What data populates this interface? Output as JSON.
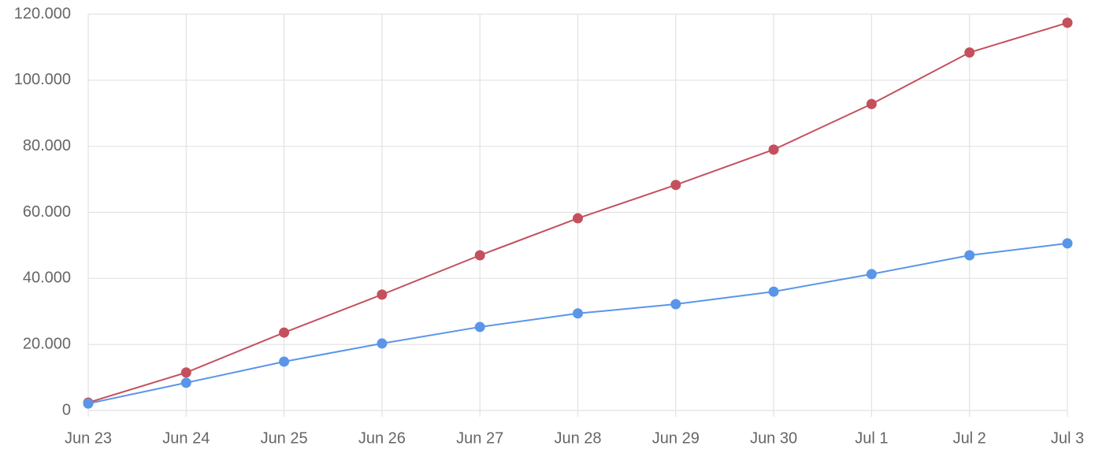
{
  "chart_data": {
    "type": "line",
    "categories": [
      "Jun 23",
      "Jun 24",
      "Jun 25",
      "Jun 26",
      "Jun 27",
      "Jun 28",
      "Jun 29",
      "Jun 30",
      "Jul 1",
      "Jul 2",
      "Jul 3"
    ],
    "series": [
      {
        "color": "#c4505e",
        "values": [
          2400,
          11500,
          23600,
          35100,
          47000,
          58200,
          68300,
          79000,
          92800,
          108400,
          117400
        ]
      },
      {
        "color": "#5b95e8",
        "values": [
          2100,
          8400,
          14800,
          20300,
          25300,
          29400,
          32200,
          36000,
          41300,
          47000,
          50600
        ]
      }
    ],
    "ylim": [
      0,
      120000
    ],
    "yticks": [
      0,
      {
        "value": 20000,
        "label": "20.000"
      },
      {
        "value": 40000,
        "label": "40.000"
      },
      {
        "value": 60000,
        "label": "60.000"
      },
      {
        "value": 80000,
        "label": "80.000"
      },
      {
        "value": 100000,
        "label": "100.000"
      },
      {
        "value": 120000,
        "label": "120.000"
      }
    ],
    "grid": true
  }
}
